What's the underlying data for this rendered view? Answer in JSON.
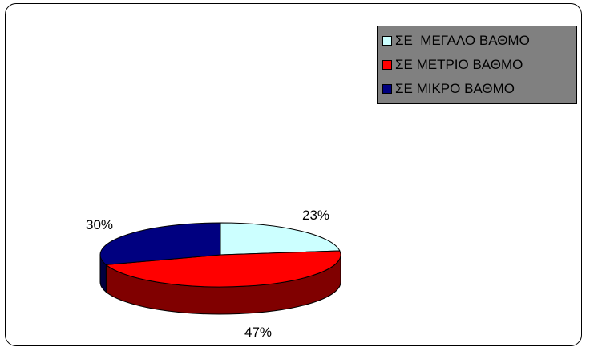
{
  "chart_data": {
    "type": "pie",
    "style": "3d",
    "legend_position": "top-right",
    "slices": [
      {
        "label": "ΣΕ  ΜΕΓΑΛΟ ΒΑΘΜΟ",
        "value": 23,
        "value_label": "23%",
        "color": "#ccffff"
      },
      {
        "label": "ΣΕ ΜΕΤΡΙΟ ΒΑΘΜΟ",
        "value": 47,
        "value_label": "47%",
        "color": "#ff0000"
      },
      {
        "label": "ΣΕ ΜΙΚΡΟ ΒΑΘΜΟ",
        "value": 30,
        "value_label": "30%",
        "color": "#000080"
      }
    ]
  }
}
